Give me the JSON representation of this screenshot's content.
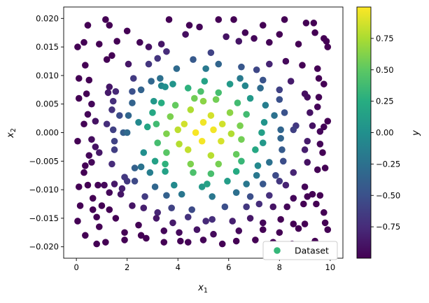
{
  "chart_data": {
    "type": "scatter",
    "title": "",
    "xlabel": {
      "base": "x",
      "sub": "1"
    },
    "ylabel": {
      "base": "x",
      "sub": "2"
    },
    "xlim": [
      -0.5,
      10.5
    ],
    "ylim": [
      -0.022,
      0.022
    ],
    "xticks": [
      0,
      2,
      4,
      6,
      8,
      10
    ],
    "xtick_labels": [
      "0",
      "2",
      "4",
      "6",
      "8",
      "10"
    ],
    "yticks": [
      -0.02,
      -0.015,
      -0.01,
      -0.005,
      0.0,
      0.005,
      0.01,
      0.015,
      0.02
    ],
    "ytick_labels": [
      "−0.020",
      "−0.015",
      "−0.010",
      "−0.005",
      "0.000",
      "0.005",
      "0.010",
      "0.015",
      "0.020"
    ],
    "grid": false,
    "legend": {
      "entries": [
        "Dataset"
      ],
      "placement": "lower-right"
    },
    "legend_marker_color": "#35b779",
    "colorbar": {
      "label": "y",
      "cmap": "viridis",
      "vmin": -1,
      "vmax": 1,
      "ticks": [
        -0.75,
        -0.5,
        -0.25,
        0.0,
        0.25,
        0.5,
        0.75
      ],
      "tick_labels": [
        "−0.75",
        "−0.50",
        "−0.25",
        "0.00",
        "0.25",
        "0.50",
        "0.75"
      ]
    },
    "series": [
      {
        "name": "Dataset",
        "value_formula": "y = cos(pi*sqrt(((x1-5)/5)^2 + (x2/0.02)^2))",
        "points": [
          [
            0.45,
            0.0188
          ],
          [
            1.15,
            0.0198
          ],
          [
            1.3,
            0.0188
          ],
          [
            2.0,
            0.0178
          ],
          [
            3.65,
            0.0198
          ],
          [
            4.45,
            0.0188
          ],
          [
            5.6,
            0.0198
          ],
          [
            6.2,
            0.0198
          ],
          [
            7.35,
            0.0188
          ],
          [
            8.2,
            0.0198
          ],
          [
            9.05,
            0.0192
          ],
          [
            9.35,
            0.0192
          ],
          [
            0.05,
            0.015
          ],
          [
            0.3,
            0.0158
          ],
          [
            0.9,
            0.0155
          ],
          [
            1.6,
            0.016
          ],
          [
            2.5,
            0.0158
          ],
          [
            2.85,
            0.015
          ],
          [
            3.35,
            0.0155
          ],
          [
            3.55,
            0.0142
          ],
          [
            4.3,
            0.0172
          ],
          [
            4.85,
            0.0185
          ],
          [
            5.3,
            0.014
          ],
          [
            5.9,
            0.0168
          ],
          [
            6.4,
            0.016
          ],
          [
            6.65,
            0.0175
          ],
          [
            7.0,
            0.0165
          ],
          [
            7.6,
            0.0158
          ],
          [
            8.0,
            0.0172
          ],
          [
            8.75,
            0.0155
          ],
          [
            9.4,
            0.0175
          ],
          [
            9.75,
            0.0165
          ],
          [
            9.85,
            0.016
          ],
          [
            9.9,
            0.015
          ],
          [
            0.35,
            0.0118
          ],
          [
            1.2,
            0.0128
          ],
          [
            1.4,
            0.0135
          ],
          [
            2.05,
            0.012
          ],
          [
            2.85,
            0.012
          ],
          [
            3.2,
            0.013
          ],
          [
            3.95,
            0.0112
          ],
          [
            4.6,
            0.0128
          ],
          [
            5.1,
            0.0112
          ],
          [
            5.6,
            0.012
          ],
          [
            6.5,
            0.0115
          ],
          [
            7.1,
            0.011
          ],
          [
            7.6,
            0.012
          ],
          [
            8.25,
            0.0125
          ],
          [
            8.9,
            0.0118
          ],
          [
            9.5,
            0.0112
          ],
          [
            0.1,
            0.0095
          ],
          [
            0.5,
            0.0092
          ],
          [
            1.3,
            0.008
          ],
          [
            2.25,
            0.0095
          ],
          [
            2.95,
            0.009
          ],
          [
            3.3,
            0.0095
          ],
          [
            3.8,
            0.0085
          ],
          [
            5.05,
            0.009
          ],
          [
            6.45,
            0.0095
          ],
          [
            7.35,
            0.0092
          ],
          [
            8.45,
            0.009
          ],
          [
            9.55,
            0.0095
          ],
          [
            9.75,
            0.0085
          ],
          [
            0.4,
            0.0068
          ],
          [
            1.25,
            0.007
          ],
          [
            1.55,
            0.0072
          ],
          [
            2.2,
            0.0072
          ],
          [
            2.55,
            0.0075
          ],
          [
            3.35,
            0.0082
          ],
          [
            3.5,
            0.008
          ],
          [
            4.4,
            0.0078
          ],
          [
            4.9,
            0.0072
          ],
          [
            5.6,
            0.007
          ],
          [
            6.05,
            0.0085
          ],
          [
            6.65,
            0.0082
          ],
          [
            7.25,
            0.0078
          ],
          [
            8.0,
            0.0075
          ],
          [
            9.0,
            0.0068
          ],
          [
            9.55,
            0.0062
          ],
          [
            0.1,
            0.006
          ],
          [
            0.6,
            0.005
          ],
          [
            1.45,
            0.0055
          ],
          [
            2.2,
            0.0052
          ],
          [
            3.05,
            0.0055
          ],
          [
            3.35,
            0.0052
          ],
          [
            3.9,
            0.0048
          ],
          [
            4.65,
            0.006
          ],
          [
            5.0,
            0.0055
          ],
          [
            5.5,
            0.0058
          ],
          [
            6.35,
            0.0052
          ],
          [
            6.85,
            0.006
          ],
          [
            7.45,
            0.0048
          ],
          [
            8.0,
            0.0058
          ],
          [
            9.1,
            0.0062
          ],
          [
            9.5,
            0.0045
          ],
          [
            0.45,
            0.0032
          ],
          [
            1.4,
            0.004
          ],
          [
            1.7,
            0.003
          ],
          [
            2.05,
            0.003
          ],
          [
            3.0,
            0.0035
          ],
          [
            3.7,
            0.0028
          ],
          [
            4.5,
            0.004
          ],
          [
            5.3,
            0.003
          ],
          [
            6.05,
            0.0035
          ],
          [
            6.7,
            0.0032
          ],
          [
            7.8,
            0.003
          ],
          [
            8.2,
            0.0035
          ],
          [
            9.2,
            0.0035
          ],
          [
            0.3,
            0.0015
          ],
          [
            0.75,
            0.002
          ],
          [
            1.2,
            0.0015
          ],
          [
            2.45,
            0.0018
          ],
          [
            3.15,
            0.0015
          ],
          [
            4.25,
            0.0015
          ],
          [
            5.0,
            0.0018
          ],
          [
            5.75,
            0.0015
          ],
          [
            6.45,
            0.0012
          ],
          [
            7.4,
            0.0018
          ],
          [
            8.65,
            0.0012
          ],
          [
            9.3,
            0.0012
          ],
          [
            9.75,
            0.001
          ],
          [
            9.9,
            0.002
          ],
          [
            1.45,
            0.0005
          ],
          [
            1.85,
            0.0
          ],
          [
            2.8,
            0.001
          ],
          [
            3.55,
            -0.0002
          ],
          [
            4.0,
            0.0005
          ],
          [
            4.7,
            0.0
          ],
          [
            5.4,
            0.0005
          ],
          [
            6.1,
            -0.0002
          ],
          [
            7.3,
            0.0
          ],
          [
            8.05,
            0.0005
          ],
          [
            8.55,
            0.0005
          ],
          [
            9.6,
            0.0002
          ],
          [
            0.05,
            -0.0015
          ],
          [
            0.6,
            -0.0012
          ],
          [
            0.75,
            -0.0025
          ],
          [
            1.5,
            -0.0015
          ],
          [
            2.0,
            0.0
          ],
          [
            3.2,
            -0.0018
          ],
          [
            4.05,
            -0.002
          ],
          [
            4.95,
            -0.0015
          ],
          [
            5.7,
            -0.0015
          ],
          [
            6.5,
            -0.0012
          ],
          [
            7.35,
            -0.0018
          ],
          [
            8.05,
            -0.001
          ],
          [
            9.1,
            -0.0015
          ],
          [
            9.6,
            -0.002
          ],
          [
            0.5,
            -0.004
          ],
          [
            0.9,
            -0.0035
          ],
          [
            1.5,
            -0.003
          ],
          [
            2.65,
            -0.0035
          ],
          [
            3.55,
            -0.0035
          ],
          [
            4.4,
            -0.003
          ],
          [
            5.3,
            -0.004
          ],
          [
            6.3,
            -0.0038
          ],
          [
            7.05,
            -0.003
          ],
          [
            8.1,
            -0.003
          ],
          [
            9.0,
            -0.003
          ],
          [
            9.7,
            -0.0035
          ],
          [
            0.35,
            -0.0058
          ],
          [
            0.6,
            -0.0052
          ],
          [
            1.4,
            -0.0055
          ],
          [
            2.3,
            -0.0062
          ],
          [
            2.55,
            -0.006
          ],
          [
            3.1,
            -0.005
          ],
          [
            3.5,
            -0.0055
          ],
          [
            4.5,
            -0.0055
          ],
          [
            5.6,
            -0.0055
          ],
          [
            6.5,
            -0.005
          ],
          [
            7.15,
            -0.0058
          ],
          [
            7.6,
            -0.0052
          ],
          [
            8.15,
            -0.005
          ],
          [
            9.1,
            -0.0052
          ],
          [
            9.8,
            -0.0062
          ],
          [
            0.3,
            -0.007
          ],
          [
            1.9,
            -0.0078
          ],
          [
            2.9,
            -0.007
          ],
          [
            3.5,
            -0.0068
          ],
          [
            4.6,
            -0.007
          ],
          [
            5.3,
            -0.0072
          ],
          [
            6.3,
            -0.0068
          ],
          [
            7.1,
            -0.0075
          ],
          [
            7.85,
            -0.0075
          ],
          [
            8.55,
            -0.007
          ],
          [
            9.5,
            -0.0065
          ],
          [
            0.1,
            -0.0095
          ],
          [
            0.45,
            -0.0092
          ],
          [
            0.85,
            -0.0092
          ],
          [
            1.1,
            -0.0092
          ],
          [
            1.5,
            -0.009
          ],
          [
            1.8,
            -0.0098
          ],
          [
            2.0,
            -0.0085
          ],
          [
            2.3,
            -0.0085
          ],
          [
            3.1,
            -0.0095
          ],
          [
            3.85,
            -0.0092
          ],
          [
            4.95,
            -0.0095
          ],
          [
            5.15,
            -0.009
          ],
          [
            5.95,
            -0.0085
          ],
          [
            6.7,
            -0.009
          ],
          [
            7.35,
            -0.009
          ],
          [
            8.0,
            -0.0085
          ],
          [
            8.25,
            -0.0092
          ],
          [
            9.0,
            -0.0095
          ],
          [
            0.65,
            -0.0115
          ],
          [
            1.3,
            -0.0105
          ],
          [
            1.75,
            -0.0108
          ],
          [
            2.7,
            -0.0112
          ],
          [
            3.55,
            -0.011
          ],
          [
            4.15,
            -0.0108
          ],
          [
            5.35,
            -0.0112
          ],
          [
            6.3,
            -0.0105
          ],
          [
            6.85,
            -0.0112
          ],
          [
            7.6,
            -0.011
          ],
          [
            8.55,
            -0.0115
          ],
          [
            9.1,
            -0.0112
          ],
          [
            9.3,
            -0.0108
          ],
          [
            9.6,
            -0.011
          ],
          [
            0.15,
            -0.0128
          ],
          [
            0.65,
            -0.0135
          ],
          [
            1.0,
            -0.0128
          ],
          [
            1.3,
            -0.0135
          ],
          [
            2.2,
            -0.0128
          ],
          [
            2.65,
            -0.0132
          ],
          [
            3.2,
            -0.014
          ],
          [
            3.75,
            -0.0132
          ],
          [
            4.55,
            -0.0135
          ],
          [
            5.85,
            -0.013
          ],
          [
            6.7,
            -0.013
          ],
          [
            7.2,
            -0.0125
          ],
          [
            7.75,
            -0.013
          ],
          [
            8.3,
            -0.013
          ],
          [
            8.95,
            -0.0125
          ],
          [
            9.45,
            -0.0125
          ],
          [
            9.75,
            -0.014
          ],
          [
            0.05,
            -0.0155
          ],
          [
            0.8,
            -0.0148
          ],
          [
            1.55,
            -0.015
          ],
          [
            2.45,
            -0.0162
          ],
          [
            3.15,
            -0.015
          ],
          [
            3.8,
            -0.0158
          ],
          [
            4.4,
            -0.0148
          ],
          [
            5.1,
            -0.0155
          ],
          [
            5.35,
            -0.0152
          ],
          [
            6.15,
            -0.0155
          ],
          [
            6.85,
            -0.015
          ],
          [
            7.35,
            -0.0158
          ],
          [
            8.05,
            -0.0152
          ],
          [
            8.55,
            -0.016
          ],
          [
            9.0,
            -0.016
          ],
          [
            9.8,
            -0.0158
          ],
          [
            0.35,
            -0.018
          ],
          [
            0.9,
            -0.0165
          ],
          [
            1.9,
            -0.0175
          ],
          [
            2.55,
            -0.018
          ],
          [
            3.45,
            -0.0172
          ],
          [
            4.05,
            -0.0175
          ],
          [
            4.75,
            -0.017
          ],
          [
            5.4,
            -0.0178
          ],
          [
            6.4,
            -0.0172
          ],
          [
            7.35,
            -0.017
          ],
          [
            8.0,
            -0.0175
          ],
          [
            8.75,
            -0.0168
          ],
          [
            9.9,
            -0.017
          ],
          [
            0.8,
            -0.0195
          ],
          [
            1.15,
            -0.0192
          ],
          [
            1.9,
            -0.0188
          ],
          [
            2.75,
            -0.0185
          ],
          [
            3.45,
            -0.0192
          ],
          [
            4.1,
            -0.019
          ],
          [
            4.4,
            -0.0192
          ],
          [
            5.0,
            -0.0188
          ],
          [
            5.75,
            -0.0195
          ],
          [
            6.3,
            -0.019
          ],
          [
            7.05,
            -0.0188
          ],
          [
            7.75,
            -0.0192
          ],
          [
            8.5,
            -0.0195
          ],
          [
            9.4,
            -0.019
          ]
        ]
      }
    ]
  }
}
